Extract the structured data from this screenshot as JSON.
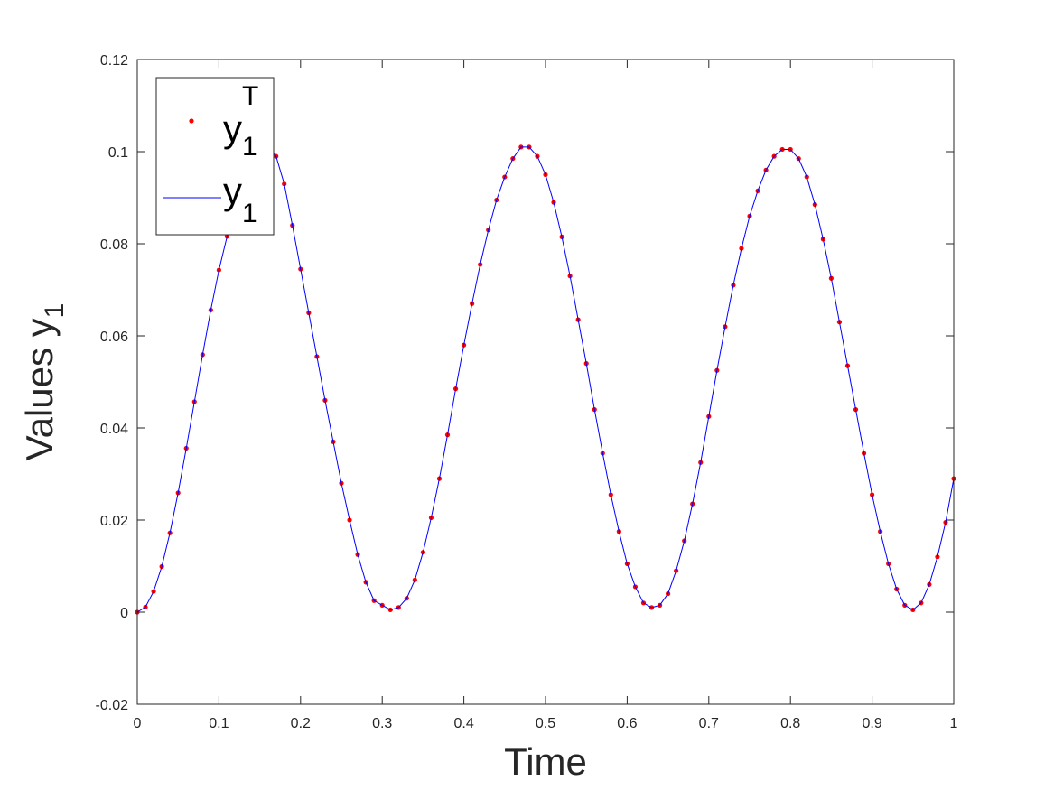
{
  "chart_data": {
    "type": "scatter",
    "xlabel": "Time",
    "ylabel": "Values y",
    "ylabel_subscript": "1",
    "xlim": [
      0,
      1
    ],
    "ylim": [
      -0.02,
      0.12
    ],
    "x_ticks": [
      0,
      0.1,
      0.2,
      0.3,
      0.4,
      0.5,
      0.6,
      0.7,
      0.8,
      0.9,
      1
    ],
    "x_tick_labels": [
      "0",
      "0.1",
      "0.2",
      "0.3",
      "0.4",
      "0.5",
      "0.6",
      "0.7",
      "0.8",
      "0.9",
      "1"
    ],
    "y_ticks": [
      -0.02,
      0,
      0.02,
      0.04,
      0.06,
      0.08,
      0.1,
      0.12
    ],
    "y_tick_labels": [
      "-0.02",
      "0",
      "0.02",
      "0.04",
      "0.06",
      "0.08",
      "0.1",
      "0.12"
    ],
    "grid": false,
    "legend_position": "top-left",
    "series": [
      {
        "name": "y",
        "name_subscript": "1",
        "name_superscript": "T",
        "kind": "scatter",
        "color": "#ff0000",
        "x": [
          0.0,
          0.01,
          0.02,
          0.03,
          0.04,
          0.05,
          0.06,
          0.07,
          0.08,
          0.09,
          0.1,
          0.11,
          0.12,
          0.13,
          0.14,
          0.15,
          0.16,
          0.17,
          0.18,
          0.19,
          0.2,
          0.21,
          0.22,
          0.23,
          0.24,
          0.25,
          0.26,
          0.27,
          0.28,
          0.29,
          0.3,
          0.31,
          0.32,
          0.33,
          0.34,
          0.35,
          0.36,
          0.37,
          0.38,
          0.39,
          0.4,
          0.41,
          0.42,
          0.43,
          0.44,
          0.45,
          0.46,
          0.47,
          0.48,
          0.49,
          0.5,
          0.51,
          0.52,
          0.53,
          0.54,
          0.55,
          0.56,
          0.57,
          0.58,
          0.59,
          0.6,
          0.61,
          0.62,
          0.63,
          0.64,
          0.65,
          0.66,
          0.67,
          0.68,
          0.69,
          0.7,
          0.71,
          0.72,
          0.73,
          0.74,
          0.75,
          0.76,
          0.77,
          0.78,
          0.79,
          0.8,
          0.81,
          0.82,
          0.83,
          0.84,
          0.85,
          0.86,
          0.87,
          0.88,
          0.89,
          0.9,
          0.91,
          0.92,
          0.93,
          0.94,
          0.95,
          0.96,
          0.97,
          0.98,
          0.99,
          1.0
        ],
        "values": [
          0.0,
          0.0011,
          0.0045,
          0.0099,
          0.0172,
          0.0259,
          0.0356,
          0.0457,
          0.0559,
          0.0656,
          0.0743,
          0.0816,
          0.087,
          0.0904,
          0.0915,
          0.0962,
          0.101,
          0.099,
          0.093,
          0.084,
          0.0745,
          0.065,
          0.0555,
          0.046,
          0.037,
          0.028,
          0.02,
          0.0125,
          0.0065,
          0.0025,
          0.0015,
          0.0005,
          0.001,
          0.003,
          0.007,
          0.013,
          0.0205,
          0.029,
          0.0385,
          0.0485,
          0.058,
          0.067,
          0.0755,
          0.083,
          0.0895,
          0.0945,
          0.0985,
          0.101,
          0.101,
          0.099,
          0.095,
          0.089,
          0.0815,
          0.073,
          0.0635,
          0.054,
          0.044,
          0.0345,
          0.0255,
          0.0175,
          0.0105,
          0.0055,
          0.002,
          0.001,
          0.0015,
          0.004,
          0.009,
          0.0155,
          0.0235,
          0.0325,
          0.0425,
          0.0525,
          0.062,
          0.071,
          0.079,
          0.086,
          0.0915,
          0.096,
          0.099,
          0.1005,
          0.1005,
          0.0985,
          0.0945,
          0.0885,
          0.081,
          0.0725,
          0.063,
          0.0535,
          0.044,
          0.0345,
          0.0255,
          0.0175,
          0.0105,
          0.005,
          0.0015,
          0.0005,
          0.002,
          0.006,
          0.012,
          0.0195,
          0.029
        ]
      },
      {
        "name": "y",
        "name_subscript": "1",
        "kind": "line",
        "color": "#0000ff",
        "x": [
          0.0,
          0.01,
          0.02,
          0.03,
          0.04,
          0.05,
          0.06,
          0.07,
          0.08,
          0.09,
          0.1,
          0.11,
          0.12,
          0.13,
          0.14,
          0.15,
          0.16,
          0.17,
          0.18,
          0.19,
          0.2,
          0.21,
          0.22,
          0.23,
          0.24,
          0.25,
          0.26,
          0.27,
          0.28,
          0.29,
          0.3,
          0.31,
          0.32,
          0.33,
          0.34,
          0.35,
          0.36,
          0.37,
          0.38,
          0.39,
          0.4,
          0.41,
          0.42,
          0.43,
          0.44,
          0.45,
          0.46,
          0.47,
          0.48,
          0.49,
          0.5,
          0.51,
          0.52,
          0.53,
          0.54,
          0.55,
          0.56,
          0.57,
          0.58,
          0.59,
          0.6,
          0.61,
          0.62,
          0.63,
          0.64,
          0.65,
          0.66,
          0.67,
          0.68,
          0.69,
          0.7,
          0.71,
          0.72,
          0.73,
          0.74,
          0.75,
          0.76,
          0.77,
          0.78,
          0.79,
          0.8,
          0.81,
          0.82,
          0.83,
          0.84,
          0.85,
          0.86,
          0.87,
          0.88,
          0.89,
          0.9,
          0.91,
          0.92,
          0.93,
          0.94,
          0.95,
          0.96,
          0.97,
          0.98,
          0.99,
          1.0
        ],
        "values": [
          0.0,
          0.0011,
          0.0045,
          0.0099,
          0.0172,
          0.0259,
          0.0356,
          0.0457,
          0.0559,
          0.0656,
          0.0743,
          0.0816,
          0.087,
          0.0904,
          0.0915,
          0.0962,
          0.101,
          0.099,
          0.093,
          0.084,
          0.0745,
          0.065,
          0.0555,
          0.046,
          0.037,
          0.028,
          0.02,
          0.0125,
          0.0065,
          0.0025,
          0.0015,
          0.0005,
          0.001,
          0.003,
          0.007,
          0.013,
          0.0205,
          0.029,
          0.0385,
          0.0485,
          0.058,
          0.067,
          0.0755,
          0.083,
          0.0895,
          0.0945,
          0.0985,
          0.101,
          0.101,
          0.099,
          0.095,
          0.089,
          0.0815,
          0.073,
          0.0635,
          0.054,
          0.044,
          0.0345,
          0.0255,
          0.0175,
          0.0105,
          0.0055,
          0.002,
          0.001,
          0.0015,
          0.004,
          0.009,
          0.0155,
          0.0235,
          0.0325,
          0.0425,
          0.0525,
          0.062,
          0.071,
          0.079,
          0.086,
          0.0915,
          0.096,
          0.099,
          0.1005,
          0.1005,
          0.0985,
          0.0945,
          0.0885,
          0.081,
          0.0725,
          0.063,
          0.0535,
          0.044,
          0.0345,
          0.0255,
          0.0175,
          0.0105,
          0.005,
          0.0015,
          0.0005,
          0.002,
          0.006,
          0.012,
          0.0195,
          0.029
        ]
      }
    ]
  }
}
